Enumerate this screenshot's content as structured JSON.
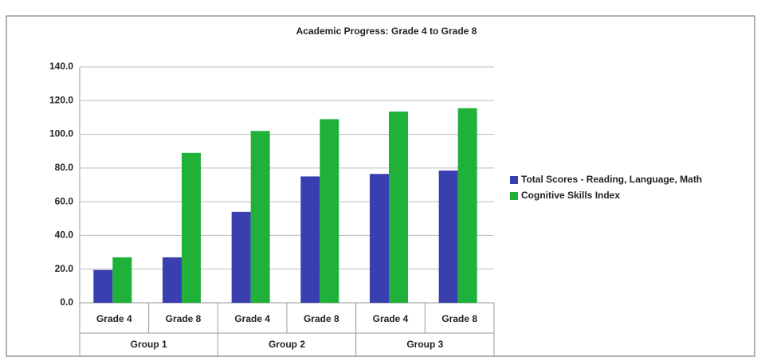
{
  "chart_data": {
    "type": "bar",
    "title": "Academic Progress: Grade 4 to Grade 8",
    "categories": [
      "Grade 4",
      "Grade 8",
      "Grade 4",
      "Grade 8",
      "Grade 4",
      "Grade 8"
    ],
    "groups": [
      "Group 1",
      "Group 2",
      "Group 3"
    ],
    "series": [
      {
        "name": "Total Scores - Reading, Language, Math",
        "color": "#3a3fb0",
        "values": [
          19.5,
          27,
          54,
          75,
          76.5,
          78.5
        ]
      },
      {
        "name": "Cognitive Skills Index",
        "color": "#1fb13a",
        "values": [
          27,
          89,
          102,
          109,
          113.5,
          115.5
        ]
      }
    ],
    "ylim": [
      0,
      140
    ],
    "yticks": [
      {
        "value": 0,
        "label": "0.0"
      },
      {
        "value": 20,
        "label": "20.0"
      },
      {
        "value": 40,
        "label": "40.0"
      },
      {
        "value": 60,
        "label": "60.0"
      },
      {
        "value": 80,
        "label": "80.0"
      },
      {
        "value": 100,
        "label": "100.0"
      },
      {
        "value": 120,
        "label": "120.0"
      },
      {
        "value": 140,
        "label": "140.0"
      }
    ],
    "grid": true,
    "legend": "right"
  }
}
